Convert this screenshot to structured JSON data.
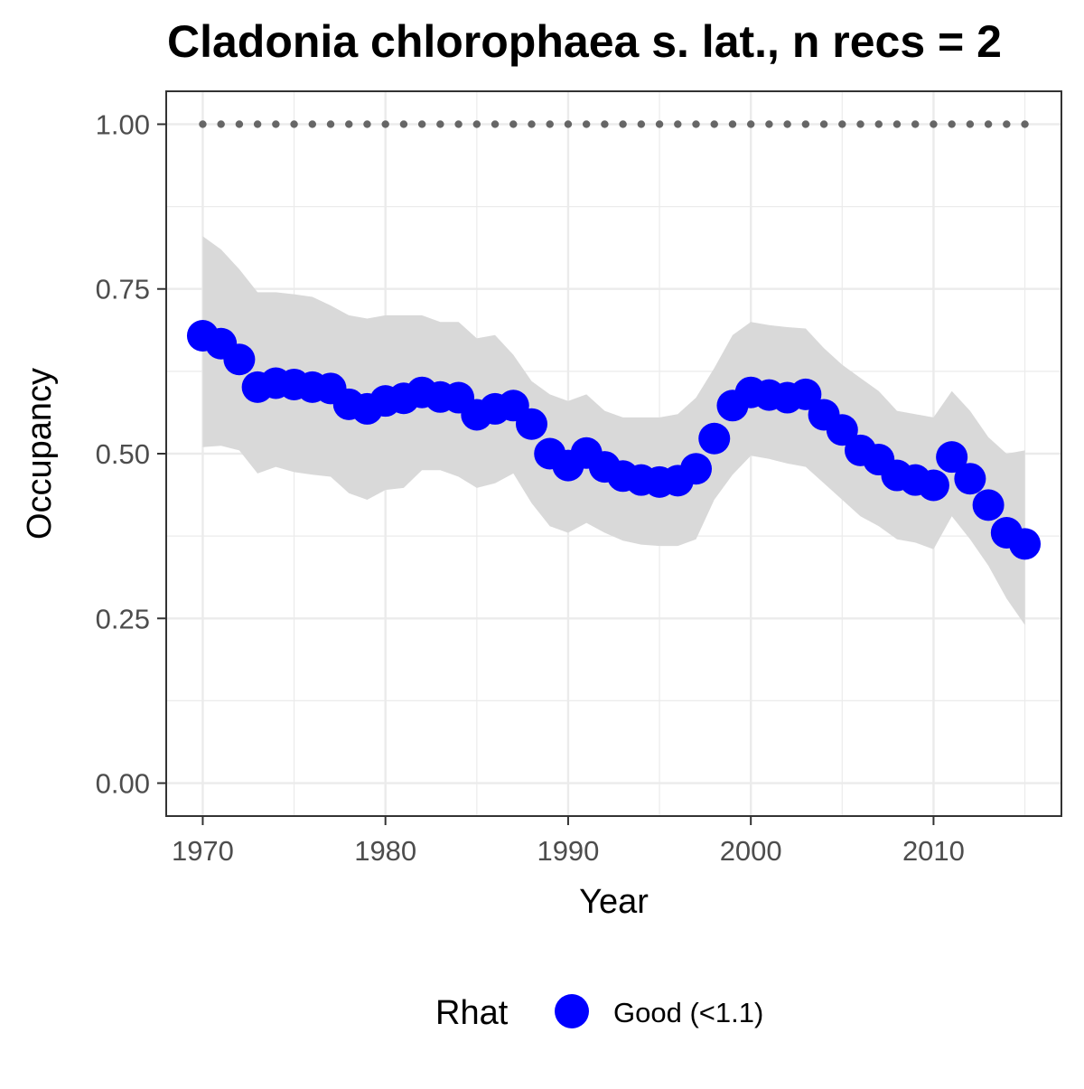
{
  "chart_data": {
    "type": "line",
    "title": "Cladonia chlorophaea s. lat., n recs = 2",
    "xlabel": "Year",
    "ylabel": "Occupancy",
    "xlim": [
      1968,
      2017
    ],
    "ylim": [
      -0.05,
      1.05
    ],
    "x_ticks": [
      1970,
      1980,
      1990,
      2000,
      2010
    ],
    "x_tick_labels": [
      "1970",
      "1980",
      "1990",
      "2000",
      "2010"
    ],
    "y_ticks": [
      0,
      0.25,
      0.5,
      0.75,
      1.0
    ],
    "y_tick_labels": [
      "0.00",
      "0.25",
      "0.50",
      "0.75",
      "1.00"
    ],
    "grid": true,
    "legend": {
      "position": "bottom",
      "title": "Rhat",
      "entries": [
        "Good (<1.1)"
      ]
    },
    "colors": {
      "points": "#0000ff",
      "band": "#d9d9d9",
      "reference": "#666666",
      "grid": "#ebebeb",
      "panel_border": "#333333"
    },
    "x": [
      1970,
      1971,
      1972,
      1973,
      1974,
      1975,
      1976,
      1977,
      1978,
      1979,
      1980,
      1981,
      1982,
      1983,
      1984,
      1985,
      1986,
      1987,
      1988,
      1989,
      1990,
      1991,
      1992,
      1993,
      1994,
      1995,
      1996,
      1997,
      1998,
      1999,
      2000,
      2001,
      2002,
      2003,
      2004,
      2005,
      2006,
      2007,
      2008,
      2009,
      2010,
      2011,
      2012,
      2013,
      2014,
      2015
    ],
    "series": [
      {
        "name": "Good (<1.1)",
        "values": [
          0.679,
          0.667,
          0.643,
          0.601,
          0.607,
          0.605,
          0.601,
          0.599,
          0.575,
          0.568,
          0.58,
          0.584,
          0.593,
          0.586,
          0.585,
          0.559,
          0.568,
          0.573,
          0.545,
          0.5,
          0.482,
          0.501,
          0.48,
          0.466,
          0.46,
          0.457,
          0.459,
          0.477,
          0.523,
          0.573,
          0.593,
          0.589,
          0.585,
          0.59,
          0.559,
          0.536,
          0.505,
          0.491,
          0.467,
          0.46,
          0.452,
          0.495,
          0.462,
          0.422,
          0.38,
          0.363
        ],
        "lower": [
          0.51,
          0.512,
          0.505,
          0.47,
          0.48,
          0.472,
          0.468,
          0.465,
          0.44,
          0.43,
          0.445,
          0.448,
          0.475,
          0.475,
          0.465,
          0.448,
          0.455,
          0.47,
          0.425,
          0.39,
          0.38,
          0.395,
          0.38,
          0.368,
          0.362,
          0.36,
          0.36,
          0.37,
          0.43,
          0.468,
          0.497,
          0.492,
          0.485,
          0.48,
          0.455,
          0.43,
          0.405,
          0.39,
          0.37,
          0.365,
          0.355,
          0.405,
          0.37,
          0.33,
          0.28,
          0.24
        ],
        "upper": [
          0.83,
          0.81,
          0.78,
          0.745,
          0.745,
          0.742,
          0.738,
          0.725,
          0.71,
          0.705,
          0.71,
          0.71,
          0.71,
          0.7,
          0.7,
          0.675,
          0.68,
          0.65,
          0.61,
          0.59,
          0.58,
          0.59,
          0.565,
          0.555,
          0.555,
          0.555,
          0.56,
          0.585,
          0.63,
          0.68,
          0.7,
          0.695,
          0.692,
          0.69,
          0.66,
          0.635,
          0.615,
          0.595,
          0.565,
          0.56,
          0.555,
          0.595,
          0.565,
          0.525,
          0.5,
          0.505
        ]
      }
    ],
    "reference_line": {
      "y": 1.0,
      "style": "dotted"
    }
  }
}
